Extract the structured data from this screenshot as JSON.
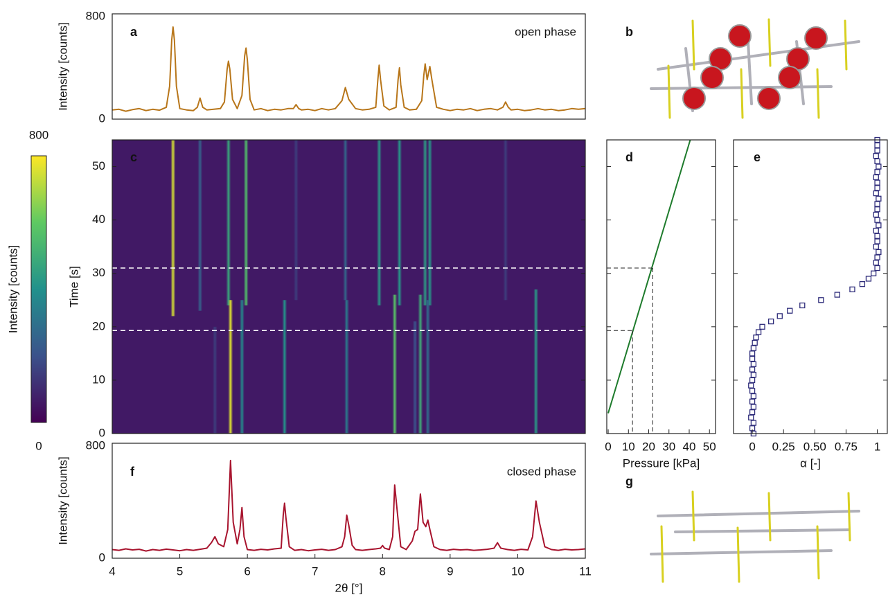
{
  "chart_data": [
    {
      "type": "line",
      "panel_label": "a",
      "annotation": "open phase",
      "ylabel": "Intensity [counts]",
      "color": "#b8761a",
      "xlim": [
        4,
        11
      ],
      "ylim": [
        0,
        800
      ],
      "yticks": [
        0,
        800
      ],
      "x": [
        4.0,
        4.1,
        4.2,
        4.3,
        4.4,
        4.5,
        4.6,
        4.7,
        4.8,
        4.85,
        4.88,
        4.9,
        4.92,
        4.95,
        5.0,
        5.1,
        5.2,
        5.26,
        5.3,
        5.34,
        5.4,
        5.5,
        5.6,
        5.66,
        5.7,
        5.72,
        5.74,
        5.78,
        5.85,
        5.92,
        5.96,
        5.98,
        6.0,
        6.04,
        6.1,
        6.2,
        6.3,
        6.4,
        6.5,
        6.6,
        6.68,
        6.72,
        6.76,
        6.8,
        6.9,
        7.0,
        7.1,
        7.2,
        7.3,
        7.4,
        7.45,
        7.5,
        7.6,
        7.7,
        7.8,
        7.9,
        7.93,
        7.95,
        7.97,
        8.02,
        8.1,
        8.2,
        8.23,
        8.25,
        8.27,
        8.32,
        8.4,
        8.5,
        8.58,
        8.61,
        8.63,
        8.66,
        8.7,
        8.73,
        8.8,
        8.9,
        9.0,
        9.1,
        9.2,
        9.3,
        9.4,
        9.5,
        9.6,
        9.7,
        9.78,
        9.82,
        9.86,
        9.9,
        10.0,
        10.1,
        10.2,
        10.3,
        10.4,
        10.5,
        10.6,
        10.7,
        10.8,
        10.9,
        11.0
      ],
      "values": [
        70,
        75,
        60,
        72,
        80,
        65,
        75,
        68,
        90,
        250,
        600,
        700,
        600,
        250,
        80,
        70,
        65,
        90,
        160,
        90,
        70,
        75,
        80,
        130,
        380,
        440,
        380,
        150,
        80,
        180,
        480,
        540,
        450,
        150,
        70,
        80,
        65,
        75,
        70,
        80,
        80,
        110,
        80,
        70,
        75,
        65,
        80,
        70,
        80,
        140,
        240,
        150,
        80,
        70,
        75,
        90,
        300,
        410,
        300,
        100,
        70,
        90,
        300,
        390,
        260,
        90,
        70,
        75,
        140,
        330,
        420,
        300,
        400,
        300,
        90,
        75,
        65,
        75,
        70,
        80,
        65,
        75,
        80,
        70,
        90,
        130,
        90,
        70,
        75,
        65,
        70,
        80,
        70,
        75,
        65,
        70,
        80,
        75,
        80
      ]
    },
    {
      "type": "heatmap",
      "panel_label": "c",
      "ylabel": "Time [s]",
      "xlim": [
        4,
        11
      ],
      "ylim": [
        0,
        55
      ],
      "yticks": [
        0,
        10,
        20,
        30,
        40,
        50
      ],
      "background": 60,
      "hlines": [
        19.3,
        31
      ],
      "streaks": [
        {
          "x": 4.9,
          "t": [
            22,
            55
          ],
          "value": 750
        },
        {
          "x": 5.3,
          "t": [
            23,
            55
          ],
          "value": 250
        },
        {
          "x": 5.72,
          "t": [
            24,
            55
          ],
          "value": 480
        },
        {
          "x": 5.98,
          "t": [
            24,
            55
          ],
          "value": 560
        },
        {
          "x": 6.72,
          "t": [
            25,
            55
          ],
          "value": 150
        },
        {
          "x": 7.45,
          "t": [
            25,
            55
          ],
          "value": 260
        },
        {
          "x": 7.95,
          "t": [
            24,
            55
          ],
          "value": 430
        },
        {
          "x": 8.25,
          "t": [
            24,
            55
          ],
          "value": 420
        },
        {
          "x": 8.63,
          "t": [
            24,
            55
          ],
          "value": 440
        },
        {
          "x": 8.7,
          "t": [
            24,
            55
          ],
          "value": 420
        },
        {
          "x": 9.82,
          "t": [
            25,
            55
          ],
          "value": 150
        },
        {
          "x": 5.52,
          "t": [
            0,
            20
          ],
          "value": 150
        },
        {
          "x": 5.75,
          "t": [
            0,
            25
          ],
          "value": 760
        },
        {
          "x": 5.92,
          "t": [
            0,
            25
          ],
          "value": 380
        },
        {
          "x": 6.55,
          "t": [
            0,
            25
          ],
          "value": 410
        },
        {
          "x": 7.47,
          "t": [
            0,
            25
          ],
          "value": 330
        },
        {
          "x": 8.18,
          "t": [
            0,
            26
          ],
          "value": 580
        },
        {
          "x": 8.48,
          "t": [
            0,
            21
          ],
          "value": 200
        },
        {
          "x": 8.56,
          "t": [
            0,
            26
          ],
          "value": 500
        },
        {
          "x": 8.67,
          "t": [
            0,
            25
          ],
          "value": 280
        },
        {
          "x": 10.27,
          "t": [
            0,
            27
          ],
          "value": 430
        }
      ],
      "colorbar": {
        "label": "Intensity [counts]",
        "clim": [
          0,
          800
        ],
        "ticks": [
          0,
          800
        ]
      }
    },
    {
      "type": "line",
      "panel_label": "d",
      "xlabel": "Pressure [kPa]",
      "color": "#1e7b2c",
      "xlim": [
        -0.7,
        53
      ],
      "xticks": [
        0,
        10,
        20,
        30,
        40,
        50
      ],
      "ylim": [
        0,
        55
      ],
      "yticks": [
        0,
        10,
        20,
        30,
        40,
        50
      ],
      "x": [
        0,
        40.5
      ],
      "values": [
        3.8,
        55
      ],
      "guides": [
        [
          12,
          19.3
        ],
        [
          22,
          31
        ]
      ]
    },
    {
      "type": "scatter",
      "panel_label": "e",
      "xlabel": "α [-]",
      "color": "#2e2c7a",
      "xlim": [
        -0.15,
        1.08
      ],
      "xticks": [
        0,
        0.25,
        {
          "value": 0.5,
          "label": "0.50"
        },
        0.75,
        1
      ],
      "ylim": [
        0,
        55
      ],
      "yticks": [
        0,
        10,
        20,
        30,
        40,
        50
      ],
      "x": [
        0.01,
        0.0,
        0.01,
        -0.01,
        0.0,
        0.01,
        0.0,
        0.01,
        0.0,
        -0.01,
        0.0,
        0.01,
        0.0,
        0.01,
        0.0,
        0.0,
        0.01,
        0.02,
        0.03,
        0.05,
        0.08,
        0.15,
        0.22,
        0.3,
        0.4,
        0.55,
        0.68,
        0.8,
        0.88,
        0.93,
        0.97,
        1.0,
        0.99,
        1.0,
        1.01,
        0.99,
        1.0,
        1.0,
        0.99,
        1.01,
        1.0,
        0.99,
        1.0,
        1.0,
        1.01,
        0.99,
        1.0,
        1.0,
        0.99,
        1.0,
        1.01,
        1.0,
        0.99,
        1.0,
        1.0,
        1.0
      ],
      "values": [
        0,
        1,
        2,
        3,
        4,
        5,
        6,
        7,
        8,
        9,
        10,
        11,
        12,
        13,
        14,
        15,
        16,
        17,
        18,
        19,
        20,
        21,
        22,
        23,
        24,
        25,
        26,
        27,
        28,
        29,
        30,
        31,
        32,
        33,
        34,
        35,
        36,
        37,
        38,
        39,
        40,
        41,
        42,
        43,
        44,
        45,
        46,
        47,
        48,
        49,
        50,
        51,
        52,
        53,
        54,
        55
      ]
    },
    {
      "type": "line",
      "panel_label": "f",
      "annotation": "closed phase",
      "ylabel": "Intensity [counts]",
      "xlabel": "2θ [°]",
      "color": "#a8142e",
      "xlim": [
        4,
        11
      ],
      "xticks": [
        4,
        5,
        6,
        7,
        8,
        9,
        10,
        11
      ],
      "ylim": [
        0,
        800
      ],
      "yticks": [
        0,
        800
      ],
      "x": [
        4.0,
        4.1,
        4.2,
        4.3,
        4.4,
        4.5,
        4.6,
        4.7,
        4.8,
        4.9,
        5.0,
        5.1,
        5.2,
        5.3,
        5.4,
        5.47,
        5.52,
        5.57,
        5.65,
        5.71,
        5.75,
        5.79,
        5.85,
        5.89,
        5.92,
        5.95,
        6.0,
        6.1,
        6.2,
        6.3,
        6.4,
        6.5,
        6.53,
        6.55,
        6.57,
        6.62,
        6.7,
        6.8,
        6.9,
        7.0,
        7.1,
        7.2,
        7.3,
        7.4,
        7.44,
        7.47,
        7.5,
        7.55,
        7.6,
        7.7,
        7.8,
        7.9,
        7.97,
        8.0,
        8.03,
        8.1,
        8.15,
        8.18,
        8.21,
        8.27,
        8.35,
        8.44,
        8.48,
        8.52,
        8.56,
        8.6,
        8.64,
        8.67,
        8.7,
        8.76,
        8.85,
        8.95,
        9.05,
        9.15,
        9.25,
        9.35,
        9.45,
        9.55,
        9.65,
        9.7,
        9.75,
        9.85,
        9.95,
        10.05,
        10.15,
        10.22,
        10.27,
        10.32,
        10.4,
        10.5,
        10.6,
        10.7,
        10.8,
        10.9,
        11.0
      ],
      "values": [
        60,
        55,
        65,
        58,
        62,
        50,
        60,
        55,
        63,
        58,
        52,
        60,
        55,
        62,
        70,
        110,
        150,
        100,
        80,
        200,
        680,
        250,
        100,
        200,
        353,
        150,
        60,
        55,
        62,
        58,
        65,
        70,
        300,
        383,
        280,
        80,
        55,
        60,
        52,
        58,
        62,
        55,
        60,
        80,
        150,
        300,
        230,
        90,
        60,
        55,
        60,
        65,
        70,
        88,
        70,
        60,
        150,
        510,
        360,
        80,
        60,
        120,
        187,
        200,
        447,
        250,
        220,
        265,
        200,
        80,
        60,
        55,
        62,
        58,
        60,
        55,
        58,
        62,
        70,
        108,
        70,
        60,
        55,
        62,
        58,
        150,
        398,
        250,
        80,
        60,
        55,
        62,
        58,
        60,
        65
      ]
    }
  ],
  "illustrations": [
    {
      "panel_label": "b"
    },
    {
      "panel_label": "g"
    }
  ]
}
